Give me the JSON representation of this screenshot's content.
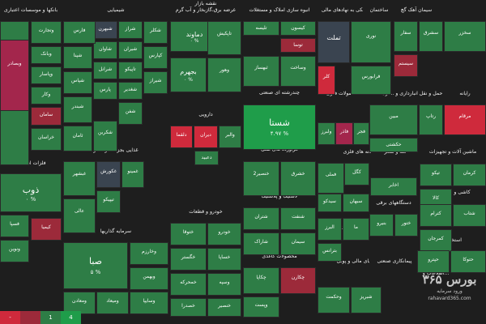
{
  "chart_data": {
    "type": "heatmap",
    "colors": {
      "strong_green": "#1f9d4a",
      "green": "#2e7d46",
      "neutral": "#3a4450",
      "red": "#9c2a3a",
      "strong_red": "#cf2a3c",
      "magenta": "#a3264c"
    },
    "sectors": [
      {
        "name": "بانکها و موسسات اعتباری"
      },
      {
        "name": "شیمیایی"
      },
      {
        "name": "فرآورده های نفتی"
      },
      {
        "name": "قند و شکر"
      },
      {
        "name": "سیمان آهک گچ"
      },
      {
        "name": "رایانه"
      },
      {
        "name": "ماشین آلات و تجهیزات"
      },
      {
        "name": "محصولات فلزی"
      },
      {
        "name": "انبوه سازی املاک و مستغلات"
      },
      {
        "name": "حمل و نقل انبارداری و ...ارتباطات"
      },
      {
        "name": "فعالیتهای کمکی به نهادهای مالی"
      },
      {
        "name": "عرضه برق،گازبخار و آب گرم"
      },
      {
        "name": "فلزات اساسی"
      },
      {
        "name": "کاشی و سرامیک"
      },
      {
        "name": "استخراج کانه های فلزی"
      },
      {
        "name": "بیمه و بازنشستگی"
      },
      {
        "name": "خودرو و قطعات"
      },
      {
        "name": "سرمایه گذاریها"
      },
      {
        "name": "محصولات کاغذی"
      },
      {
        "name": "واسطه گریهای مالی و پولی"
      },
      {
        "name": "لاستیک و پلاستیک"
      },
      {
        "name": "دستگاههای برقی"
      },
      {
        "name": "دارویی"
      },
      {
        "name": "چندرشته ای صنعتی"
      },
      {
        "name": "پیمانکاری صنعتی"
      },
      {
        "name": "غذایی بجز قند و شکر"
      },
      {
        "name": "استخراج"
      },
      {
        "name": "اطلاعات و..."
      },
      {
        "name": "ذوب"
      },
      {
        "name": "ساختمان"
      },
      {
        "name": "کاغذ و واسطه"
      },
      {
        "name": "نقشه بازار"
      }
    ],
    "tiles": [
      {
        "name": "شستا",
        "change": "۴.۹۷ %",
        "color": "strong_green"
      },
      {
        "name": "ذوب",
        "change": "۰ %",
        "color": "green"
      },
      {
        "name": "صبا",
        "change": "۵ %",
        "color": "green"
      },
      {
        "name": "دماوند",
        "change": "۰ %",
        "color": "green"
      },
      {
        "name": "بجهرم",
        "change": "۰ %",
        "color": "green"
      },
      {
        "name": "وبملت",
        "change": "۱ %",
        "color": "green"
      },
      {
        "name": "وبصادر",
        "change": "",
        "color": "magenta"
      },
      {
        "name": "وتجارت",
        "change": "",
        "color": "green"
      },
      {
        "name": "وپارس",
        "change": "",
        "color": "green"
      },
      {
        "name": "وبانک",
        "change": "",
        "color": "green"
      },
      {
        "name": "وپاسار",
        "change": "",
        "color": "green"
      },
      {
        "name": "وکار",
        "change": "",
        "color": "green"
      },
      {
        "name": "سامان",
        "change": "",
        "color": "red"
      },
      {
        "name": "شپنا",
        "change": "",
        "color": "green"
      },
      {
        "name": "شپاس",
        "change": "",
        "color": "green"
      },
      {
        "name": "شبندر",
        "change": "",
        "color": "green"
      },
      {
        "name": "شبهرن",
        "change": "",
        "color": "neutral"
      },
      {
        "name": "شاوان",
        "change": "",
        "color": "green"
      },
      {
        "name": "شرانل",
        "change": "",
        "color": "green"
      },
      {
        "name": "شراز",
        "change": "",
        "color": "green"
      },
      {
        "name": "فارس",
        "change": "",
        "color": "green"
      },
      {
        "name": "شیران",
        "change": "",
        "color": "green"
      },
      {
        "name": "شکلر",
        "change": "",
        "color": "green"
      },
      {
        "name": "کپارس",
        "change": "",
        "color": "green"
      },
      {
        "name": "تاپیکو",
        "change": "",
        "color": "green"
      },
      {
        "name": "پارس",
        "change": "",
        "color": "green"
      },
      {
        "name": "شغدیر",
        "change": "",
        "color": "green"
      },
      {
        "name": "شیراز",
        "change": "",
        "color": "green"
      },
      {
        "name": "شکربن",
        "change": "",
        "color": "green"
      },
      {
        "name": "شفن",
        "change": "",
        "color": "green"
      },
      {
        "name": "خراسان",
        "change": "",
        "color": "green"
      },
      {
        "name": "ثامان",
        "change": "",
        "color": "green"
      },
      {
        "name": "وهور",
        "change": "",
        "color": "green"
      },
      {
        "name": "تاپکیش",
        "change": "",
        "color": "green"
      },
      {
        "name": "کلر",
        "change": "",
        "color": "strong_red"
      },
      {
        "name": "تملت",
        "change": "",
        "color": "neutral"
      },
      {
        "name": "دلقما",
        "change": "",
        "color": "strong_red"
      },
      {
        "name": "دیران",
        "change": "",
        "color": "strong_red"
      },
      {
        "name": "والبر",
        "change": "",
        "color": "green"
      },
      {
        "name": "دعبید",
        "change": "",
        "color": "green"
      },
      {
        "name": "فاذر",
        "change": "",
        "color": "magenta"
      },
      {
        "name": "فجر",
        "change": "",
        "color": "green"
      },
      {
        "name": "ولبرز",
        "change": "",
        "color": "green"
      },
      {
        "name": "کگل",
        "change": "",
        "color": "green"
      },
      {
        "name": "فملی",
        "change": "",
        "color": "green"
      },
      {
        "name": "غبشهر",
        "change": "",
        "color": "green"
      },
      {
        "name": "غکورش",
        "change": "",
        "color": "neutral"
      },
      {
        "name": "غمینو",
        "change": "",
        "color": "green"
      },
      {
        "name": "عالی",
        "change": "",
        "color": "green"
      },
      {
        "name": "تیپیکو",
        "change": "",
        "color": "green"
      },
      {
        "name": "کیمیا",
        "change": "",
        "color": "red"
      },
      {
        "name": "فسپا",
        "change": "",
        "color": "green"
      },
      {
        "name": "ونوین",
        "change": "",
        "color": "green"
      },
      {
        "name": "ختوقا",
        "change": "",
        "color": "green"
      },
      {
        "name": "خودرو",
        "change": "",
        "color": "green"
      },
      {
        "name": "خگستر",
        "change": "",
        "color": "green"
      },
      {
        "name": "خساپا",
        "change": "",
        "color": "green"
      },
      {
        "name": "خمحرکه",
        "change": "",
        "color": "green"
      },
      {
        "name": "وخارزم",
        "change": "",
        "color": "green"
      },
      {
        "name": "وبهمن",
        "change": "",
        "color": "green"
      },
      {
        "name": "ومعادن",
        "change": "",
        "color": "green"
      },
      {
        "name": "ومیعاد",
        "change": "",
        "color": "green"
      },
      {
        "name": "وسایپا",
        "change": "",
        "color": "green"
      },
      {
        "name": "چکاپا",
        "change": "",
        "color": "green"
      },
      {
        "name": "چکارن",
        "change": "",
        "color": "red"
      },
      {
        "name": "وپست",
        "change": "",
        "color": "green"
      },
      {
        "name": "البرز",
        "change": "",
        "color": "green"
      },
      {
        "name": "ما",
        "change": "",
        "color": "green"
      },
      {
        "name": "بترانس",
        "change": "",
        "color": "green"
      },
      {
        "name": "بنیرو",
        "change": "",
        "color": "green"
      },
      {
        "name": "ختور",
        "change": "",
        "color": "green"
      },
      {
        "name": "خصدرا",
        "change": "",
        "color": "green"
      },
      {
        "name": "خنصیر",
        "change": "",
        "color": "green"
      },
      {
        "name": "وسپه",
        "change": "",
        "color": "green"
      },
      {
        "name": "وحکمت",
        "change": "",
        "color": "green"
      },
      {
        "name": "شبریز",
        "change": "",
        "color": "green"
      },
      {
        "name": "شتران",
        "change": "",
        "color": "green"
      },
      {
        "name": "شنفت",
        "change": "",
        "color": "green"
      },
      {
        "name": "شاراک",
        "change": "",
        "color": "green"
      },
      {
        "name": "سیمان",
        "change": "",
        "color": "green"
      },
      {
        "name": "سفار",
        "change": "",
        "color": "green"
      },
      {
        "name": "سشرق",
        "change": "",
        "color": "green"
      },
      {
        "name": "سخزر",
        "change": "",
        "color": "green"
      },
      {
        "name": "سیستم",
        "change": "",
        "color": "red"
      },
      {
        "name": "مرقام",
        "change": "",
        "color": "strong_red"
      },
      {
        "name": "رتاپ",
        "change": "",
        "color": "green"
      },
      {
        "name": "تیکو",
        "change": "",
        "color": "green"
      },
      {
        "name": "کرمان",
        "change": "",
        "color": "green"
      },
      {
        "name": "کالا",
        "change": "",
        "color": "green"
      },
      {
        "name": "کترام",
        "change": "",
        "color": "green"
      },
      {
        "name": "شتاب",
        "change": "",
        "color": "green"
      },
      {
        "name": "کمرجان",
        "change": "",
        "color": "green"
      },
      {
        "name": "تلیسه",
        "change": "",
        "color": "green"
      },
      {
        "name": "کیسون",
        "change": "",
        "color": "green"
      },
      {
        "name": "توسا",
        "change": "",
        "color": "red"
      },
      {
        "name": "ثبهساز",
        "change": "",
        "color": "green"
      },
      {
        "name": "وساخت",
        "change": "",
        "color": "green"
      },
      {
        "name": "نوری",
        "change": "",
        "color": "green"
      },
      {
        "name": "فرابورس",
        "change": "",
        "color": "green"
      },
      {
        "name": "مبین",
        "change": "",
        "color": "green"
      },
      {
        "name": "حکشتی",
        "change": "",
        "color": "green"
      },
      {
        "name": "اخابر",
        "change": "",
        "color": "green"
      },
      {
        "name": "حپترو",
        "change": "",
        "color": "green"
      },
      {
        "name": "حتوکا",
        "change": "",
        "color": "green"
      },
      {
        "name": "سیدکو",
        "change": "",
        "color": "green"
      },
      {
        "name": "سبهان",
        "change": "",
        "color": "green"
      },
      {
        "name": "خنصیر2",
        "change": "",
        "color": "green"
      },
      {
        "name": "خشرق",
        "change": "",
        "color": "green"
      }
    ]
  },
  "legend": [
    {
      "label": "-",
      "color": "#cf2a3c"
    },
    {
      "label": "",
      "color": "#9c2a3a"
    },
    {
      "label": "1",
      "color": "#2e7d46"
    },
    {
      "label": "4",
      "color": "#1f9d4a"
    }
  ],
  "watermark": {
    "title": "بورس ۳۶۵",
    "subtitle": "ورود سرمایه",
    "url": "rahavard365.com"
  }
}
